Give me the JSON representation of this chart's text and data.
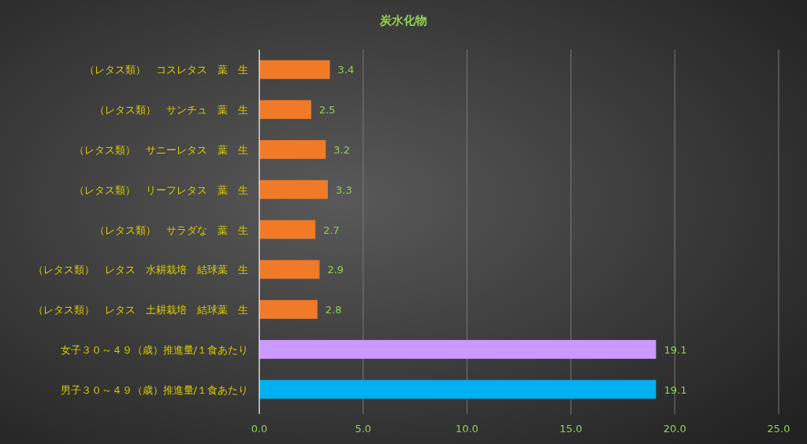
{
  "chart_data": {
    "type": "bar",
    "orientation": "horizontal",
    "title": "炭水化物",
    "categories": [
      "（レタス類）　コスレタス　葉　生",
      "（レタス類）　サンチュ　葉　生",
      "（レタス類）　サニーレタス　葉　生",
      "（レタス類）　リーフレタス　葉　生",
      "（レタス類）　サラダな　葉　生",
      "（レタス類）　レタス　水耕栽培　結球葉　生",
      "（レタス類）　レタス　土耕栽培　結球葉　生",
      "女子３０～４９（歳）推進量/１食あたり",
      "男子３０～４９（歳）推進量/１食あたり"
    ],
    "values": [
      3.4,
      2.5,
      3.2,
      3.3,
      2.7,
      2.9,
      2.8,
      19.1,
      19.1
    ],
    "colors": [
      "#f07a28",
      "#f07a28",
      "#f07a28",
      "#f07a28",
      "#f07a28",
      "#f07a28",
      "#f07a28",
      "#cc99ff",
      "#00b0f0"
    ],
    "xlim": [
      0,
      25
    ],
    "xticks": [
      {
        "value": 0,
        "label": "0.0"
      },
      {
        "value": 5,
        "label": "5.0"
      },
      {
        "value": 10,
        "label": "10.0"
      },
      {
        "value": 15,
        "label": "15.0"
      },
      {
        "value": 20,
        "label": "20.0"
      },
      {
        "value": 25,
        "label": "25.0"
      }
    ],
    "grid": "x",
    "data_labels": true
  }
}
